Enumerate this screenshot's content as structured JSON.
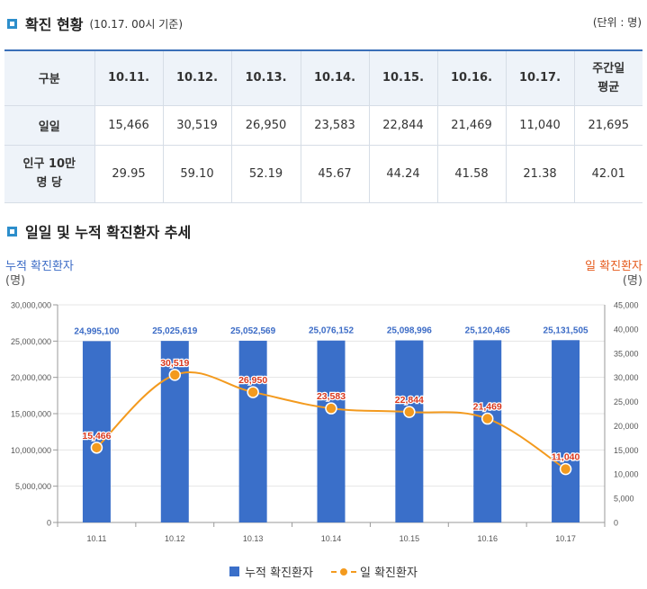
{
  "section1": {
    "title": "확진 현황",
    "subtitle": "(10.17. 00시 기준)",
    "unit": "(단위 : 명)"
  },
  "table": {
    "header": [
      "구분",
      "10.11.",
      "10.12.",
      "10.13.",
      "10.14.",
      "10.15.",
      "10.16.",
      "10.17.",
      "주간일\n평균"
    ],
    "rows": [
      {
        "label": "일일",
        "values": [
          "15,466",
          "30,519",
          "26,950",
          "23,583",
          "22,844",
          "21,469",
          "11,040",
          "21,695"
        ]
      },
      {
        "label": "인구 10만\n명 당",
        "values": [
          "29.95",
          "59.10",
          "52.19",
          "45.67",
          "44.24",
          "41.58",
          "21.38",
          "42.01"
        ]
      }
    ]
  },
  "section2": {
    "title": "일일 및 누적 확진환자 추세"
  },
  "axis_titles": {
    "left": "누적 확진환자",
    "left_unit": "(명)",
    "right": "일 확진환자",
    "right_unit": "(명)"
  },
  "legend": {
    "bar": "누적 확진환자",
    "line": "일 확진환자"
  },
  "colors": {
    "bar": "#3a6fc9",
    "line": "#f39a1e",
    "point": "#f39a1e",
    "bar_label": "#3b6bc6",
    "line_label": "#d9381e"
  },
  "chart_data": {
    "type": "bar+line",
    "categories": [
      "10.11",
      "10.12",
      "10.13",
      "10.14",
      "10.15",
      "10.16",
      "10.17"
    ],
    "series": [
      {
        "name": "누적 확진환자",
        "type": "bar",
        "axis": "left",
        "values": [
          24995100,
          25025619,
          25052569,
          25076152,
          25098996,
          25120465,
          25131505
        ],
        "labels": [
          "24,995,100",
          "25,025,619",
          "25,052,569",
          "25,076,152",
          "25,098,996",
          "25,120,465",
          "25,131,505"
        ]
      },
      {
        "name": "일 확진환자",
        "type": "line",
        "axis": "right",
        "values": [
          15466,
          30519,
          26950,
          23583,
          22844,
          21469,
          11040
        ],
        "labels": [
          "15,466",
          "30,519",
          "26,950",
          "23,583",
          "22,844",
          "21,469",
          "11,040"
        ]
      }
    ],
    "left_axis": {
      "min": 0,
      "max": 30000000,
      "step": 5000000,
      "ticks": [
        "0",
        "5,000,000",
        "10,000,000",
        "15,000,000",
        "20,000,000",
        "25,000,000",
        "30,000,000"
      ]
    },
    "right_axis": {
      "min": 0,
      "max": 45000,
      "step": 5000,
      "ticks": [
        "0",
        "5,000",
        "10,000",
        "15,000",
        "20,000",
        "25,000",
        "30,000",
        "35,000",
        "40,000",
        "45,000"
      ]
    },
    "grid": true,
    "legend_position": "bottom"
  }
}
